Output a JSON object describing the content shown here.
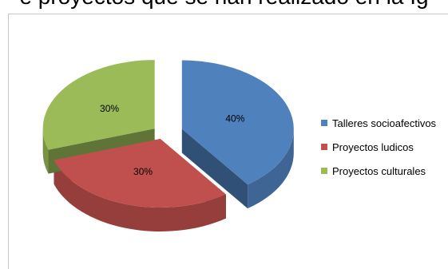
{
  "title_fragment": "e proyectos que se han realizado en la Ig",
  "chart_data": {
    "type": "pie",
    "style": "3d-exploded",
    "categories": [
      "Talleres socioafectivos",
      "Proyectos ludicos",
      "Proyectos culturales"
    ],
    "values": [
      40,
      30,
      30
    ],
    "labels": [
      "40%",
      "30%",
      "30%"
    ],
    "colors": [
      "#4f81bd",
      "#c0504d",
      "#9bbb59"
    ],
    "legend_position": "right"
  }
}
